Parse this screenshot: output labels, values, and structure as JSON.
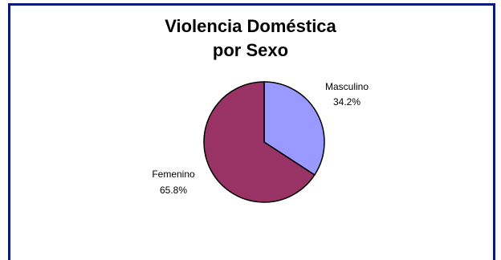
{
  "chart_data": {
    "type": "pie",
    "title_lines": [
      "Violencia Doméstica",
      "por Sexo"
    ],
    "slices": [
      {
        "label": "Masculino",
        "value": 34.2,
        "value_label": "34.2%",
        "color": "#9999ff"
      },
      {
        "label": "Femenino",
        "value": 65.8,
        "value_label": "65.8%",
        "color": "#993366"
      }
    ]
  },
  "colors": {
    "frame_border": "#0a1a7a",
    "slice_outline": "#000000"
  }
}
